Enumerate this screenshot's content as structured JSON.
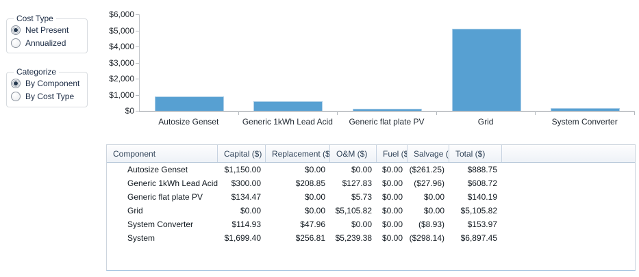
{
  "controls": {
    "cost_type": {
      "label": "Cost Type",
      "options": [
        {
          "label": "Net Present",
          "selected": true
        },
        {
          "label": "Annualized",
          "selected": false
        }
      ]
    },
    "categorize": {
      "label": "Categorize",
      "options": [
        {
          "label": "By Component",
          "selected": true
        },
        {
          "label": "By Cost Type",
          "selected": false
        }
      ]
    }
  },
  "chart_data": {
    "type": "bar",
    "title": "",
    "categories": [
      "Autosize Genset",
      "Generic 1kWh Lead Acid",
      "Generic flat plate PV",
      "Grid",
      "System Converter"
    ],
    "values": [
      888.75,
      608.72,
      140.19,
      5105.82,
      153.97
    ],
    "xlabel": "",
    "ylabel": "",
    "ylim": [
      0,
      6000
    ],
    "ytick_labels": [
      "$0",
      "$1,000",
      "$2,000",
      "$3,000",
      "$4,000",
      "$5,000",
      "$6,000"
    ],
    "grid": false,
    "legend": "none",
    "bar_color": "#57a0d2",
    "bar_border_color": "#aecfe8"
  },
  "table": {
    "columns": [
      "Component",
      "Capital ($)",
      "Replacement ($)",
      "O&M ($)",
      "Fuel ($)",
      "Salvage ($)",
      "Total ($)"
    ],
    "rows": [
      [
        "Autosize Genset",
        "$1,150.00",
        "$0.00",
        "$0.00",
        "$0.00",
        "($261.25)",
        "$888.75"
      ],
      [
        "Generic 1kWh Lead Acid",
        "$300.00",
        "$208.85",
        "$127.83",
        "$0.00",
        "($27.96)",
        "$608.72"
      ],
      [
        "Generic flat plate PV",
        "$134.47",
        "$0.00",
        "$5.73",
        "$0.00",
        "$0.00",
        "$140.19"
      ],
      [
        "Grid",
        "$0.00",
        "$0.00",
        "$5,105.82",
        "$0.00",
        "$0.00",
        "$5,105.82"
      ],
      [
        "System Converter",
        "$114.93",
        "$47.96",
        "$0.00",
        "$0.00",
        "($8.93)",
        "$153.97"
      ],
      [
        "System",
        "$1,699.40",
        "$256.81",
        "$5,239.38",
        "$0.00",
        "($298.14)",
        "$6,897.45"
      ]
    ]
  }
}
